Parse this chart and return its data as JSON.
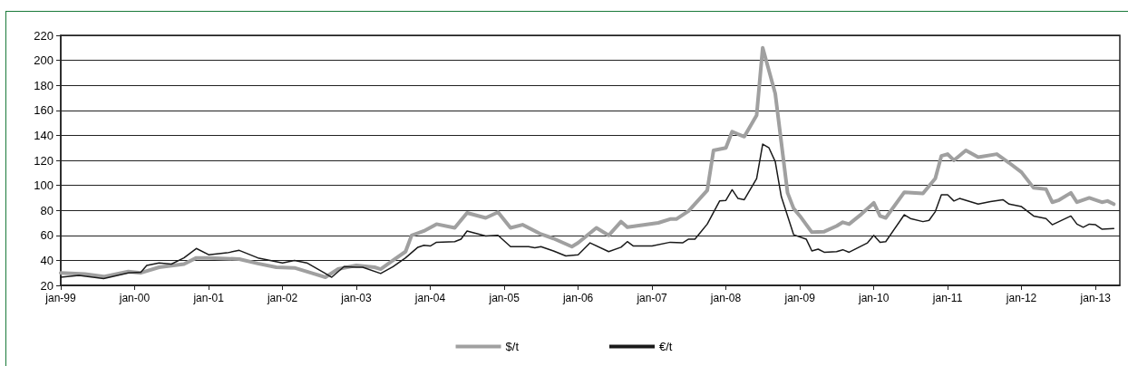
{
  "chart_data": {
    "type": "line",
    "ylim": [
      20,
      220
    ],
    "yticks": [
      20,
      40,
      60,
      80,
      100,
      120,
      140,
      160,
      180,
      200,
      220
    ],
    "xlim": [
      "1999-01",
      "2013-05"
    ],
    "xticks": [
      {
        "value": "1999-01",
        "label": "jan-99"
      },
      {
        "value": "2000-01",
        "label": "jan-00"
      },
      {
        "value": "2001-01",
        "label": "jan-01"
      },
      {
        "value": "2002-01",
        "label": "jan-02"
      },
      {
        "value": "2003-01",
        "label": "jan-03"
      },
      {
        "value": "2004-01",
        "label": "jan-04"
      },
      {
        "value": "2005-01",
        "label": "jan-05"
      },
      {
        "value": "2006-01",
        "label": "jan-06"
      },
      {
        "value": "2007-01",
        "label": "jan-07"
      },
      {
        "value": "2008-01",
        "label": "jan-08"
      },
      {
        "value": "2009-01",
        "label": "jan-09"
      },
      {
        "value": "2010-01",
        "label": "jan-10"
      },
      {
        "value": "2011-01",
        "label": "jan-11"
      },
      {
        "value": "2012-01",
        "label": "jan-12"
      },
      {
        "value": "2013-01",
        "label": "jan-13"
      }
    ],
    "grid": "y",
    "legend": "bottom",
    "marker": "none",
    "line_style": "solid",
    "series": [
      {
        "name": "$/t",
        "color": "#a0a0a0",
        "x": [
          "1999-01",
          "1999-05",
          "1999-08",
          "1999-12",
          "2000-02",
          "2000-05",
          "2000-09",
          "2000-11",
          "2001-01",
          "2001-06",
          "2001-09",
          "2001-12",
          "2002-03",
          "2002-06",
          "2002-08",
          "2002-10",
          "2003-01",
          "2003-04",
          "2003-05",
          "2003-07",
          "2003-09",
          "2003-10",
          "2003-12",
          "2004-02",
          "2004-05",
          "2004-07",
          "2004-10",
          "2004-12",
          "2005-02",
          "2005-04",
          "2005-07",
          "2005-09",
          "2005-12",
          "2006-01",
          "2006-04",
          "2006-06",
          "2006-08",
          "2006-09",
          "2007-02",
          "2007-04",
          "2007-05",
          "2007-07",
          "2007-10",
          "2007-11",
          "2008-01",
          "2008-02",
          "2008-03",
          "2008-04",
          "2008-06",
          "2008-07",
          "2008-09",
          "2008-11",
          "2008-12",
          "2009-01",
          "2009-03",
          "2009-05",
          "2009-07",
          "2009-08",
          "2009-09",
          "2009-11",
          "2010-01",
          "2010-02",
          "2010-03",
          "2010-06",
          "2010-09",
          "2010-11",
          "2010-12",
          "2011-01",
          "2011-02",
          "2011-04",
          "2011-06",
          "2011-09",
          "2011-11",
          "2012-01",
          "2012-03",
          "2012-05",
          "2012-06",
          "2012-07",
          "2012-09",
          "2012-10",
          "2012-12",
          "2013-02",
          "2013-03",
          "2013-04"
        ],
        "values": [
          30,
          29,
          27,
          31,
          30,
          34.5,
          37,
          42,
          42,
          41,
          37.5,
          34.5,
          34,
          29.5,
          26.5,
          33,
          36,
          34.5,
          33,
          40,
          47,
          60,
          63.5,
          69,
          66,
          78,
          74,
          78.5,
          66,
          68.5,
          61,
          57.5,
          51,
          54,
          66,
          60,
          71,
          66.5,
          70,
          73,
          73,
          79.5,
          96,
          128,
          130,
          143,
          141,
          139,
          156,
          210,
          173.5,
          94,
          81.5,
          75.5,
          62.5,
          63,
          67.5,
          70.5,
          69,
          77,
          86,
          75.5,
          74,
          94.5,
          93.5,
          105.5,
          123.5,
          125,
          120,
          128,
          122.5,
          125,
          118,
          110.5,
          98,
          97,
          86.5,
          88,
          94,
          86.5,
          90,
          86.5,
          87.5,
          85
        ]
      },
      {
        "name": "€/t",
        "color": "#1a1a1a",
        "x": [
          "1999-01",
          "1999-04",
          "1999-08",
          "1999-12",
          "2000-02",
          "2000-03",
          "2000-05",
          "2000-07",
          "2000-09",
          "2000-11",
          "2001-01",
          "2001-04",
          "2001-06",
          "2001-09",
          "2001-11",
          "2002-01",
          "2002-03",
          "2002-05",
          "2002-08",
          "2002-09",
          "2002-11",
          "2003-01",
          "2003-02",
          "2003-05",
          "2003-07",
          "2003-09",
          "2003-11",
          "2003-12",
          "2004-01",
          "2004-02",
          "2004-05",
          "2004-06",
          "2004-07",
          "2004-10",
          "2004-12",
          "2005-02",
          "2005-05",
          "2005-06",
          "2005-07",
          "2005-09",
          "2005-11",
          "2006-01",
          "2006-03",
          "2006-06",
          "2006-08",
          "2006-09",
          "2006-10",
          "2007-01",
          "2007-04",
          "2007-06",
          "2007-07",
          "2007-08",
          "2007-10",
          "2007-12",
          "2008-01",
          "2008-02",
          "2008-03",
          "2008-04",
          "2008-06",
          "2008-07",
          "2008-08",
          "2008-09",
          "2008-10",
          "2008-12",
          "2009-02",
          "2009-03",
          "2009-04",
          "2009-05",
          "2009-07",
          "2009-08",
          "2009-09",
          "2009-12",
          "2010-01",
          "2010-02",
          "2010-03",
          "2010-06",
          "2010-07",
          "2010-09",
          "2010-10",
          "2010-11",
          "2010-12",
          "2011-01",
          "2011-02",
          "2011-03",
          "2011-06",
          "2011-08",
          "2011-10",
          "2011-11",
          "2012-01",
          "2012-03",
          "2012-05",
          "2012-06",
          "2012-09",
          "2012-10",
          "2012-11",
          "2012-12",
          "2013-01",
          "2013-02",
          "2013-04"
        ],
        "values": [
          26.5,
          28,
          25.5,
          30,
          30.5,
          36,
          38,
          37,
          42,
          49.5,
          44.5,
          46,
          48,
          42,
          40,
          38,
          40,
          38,
          29.5,
          26.5,
          35,
          34.5,
          34.5,
          29.5,
          35,
          42,
          50.5,
          52,
          51.5,
          54.5,
          55,
          57,
          63.5,
          59.5,
          60,
          51,
          51,
          50,
          51,
          47.5,
          43.5,
          44.5,
          54,
          47,
          50.5,
          55,
          51.5,
          51.5,
          54.5,
          54,
          57,
          57,
          69,
          87.5,
          88,
          96.5,
          89.5,
          88.5,
          105.5,
          133,
          130,
          119,
          91,
          60.5,
          57,
          47.5,
          49,
          46.5,
          47,
          48.5,
          46.5,
          54,
          60,
          54.5,
          55,
          76.5,
          73.5,
          71,
          72,
          79,
          92.5,
          92.5,
          87.5,
          89.5,
          85,
          87,
          88.5,
          85,
          83,
          75.5,
          73.5,
          68.5,
          75.5,
          69,
          66.5,
          69,
          68.5,
          65,
          65.5
        ]
      }
    ]
  }
}
